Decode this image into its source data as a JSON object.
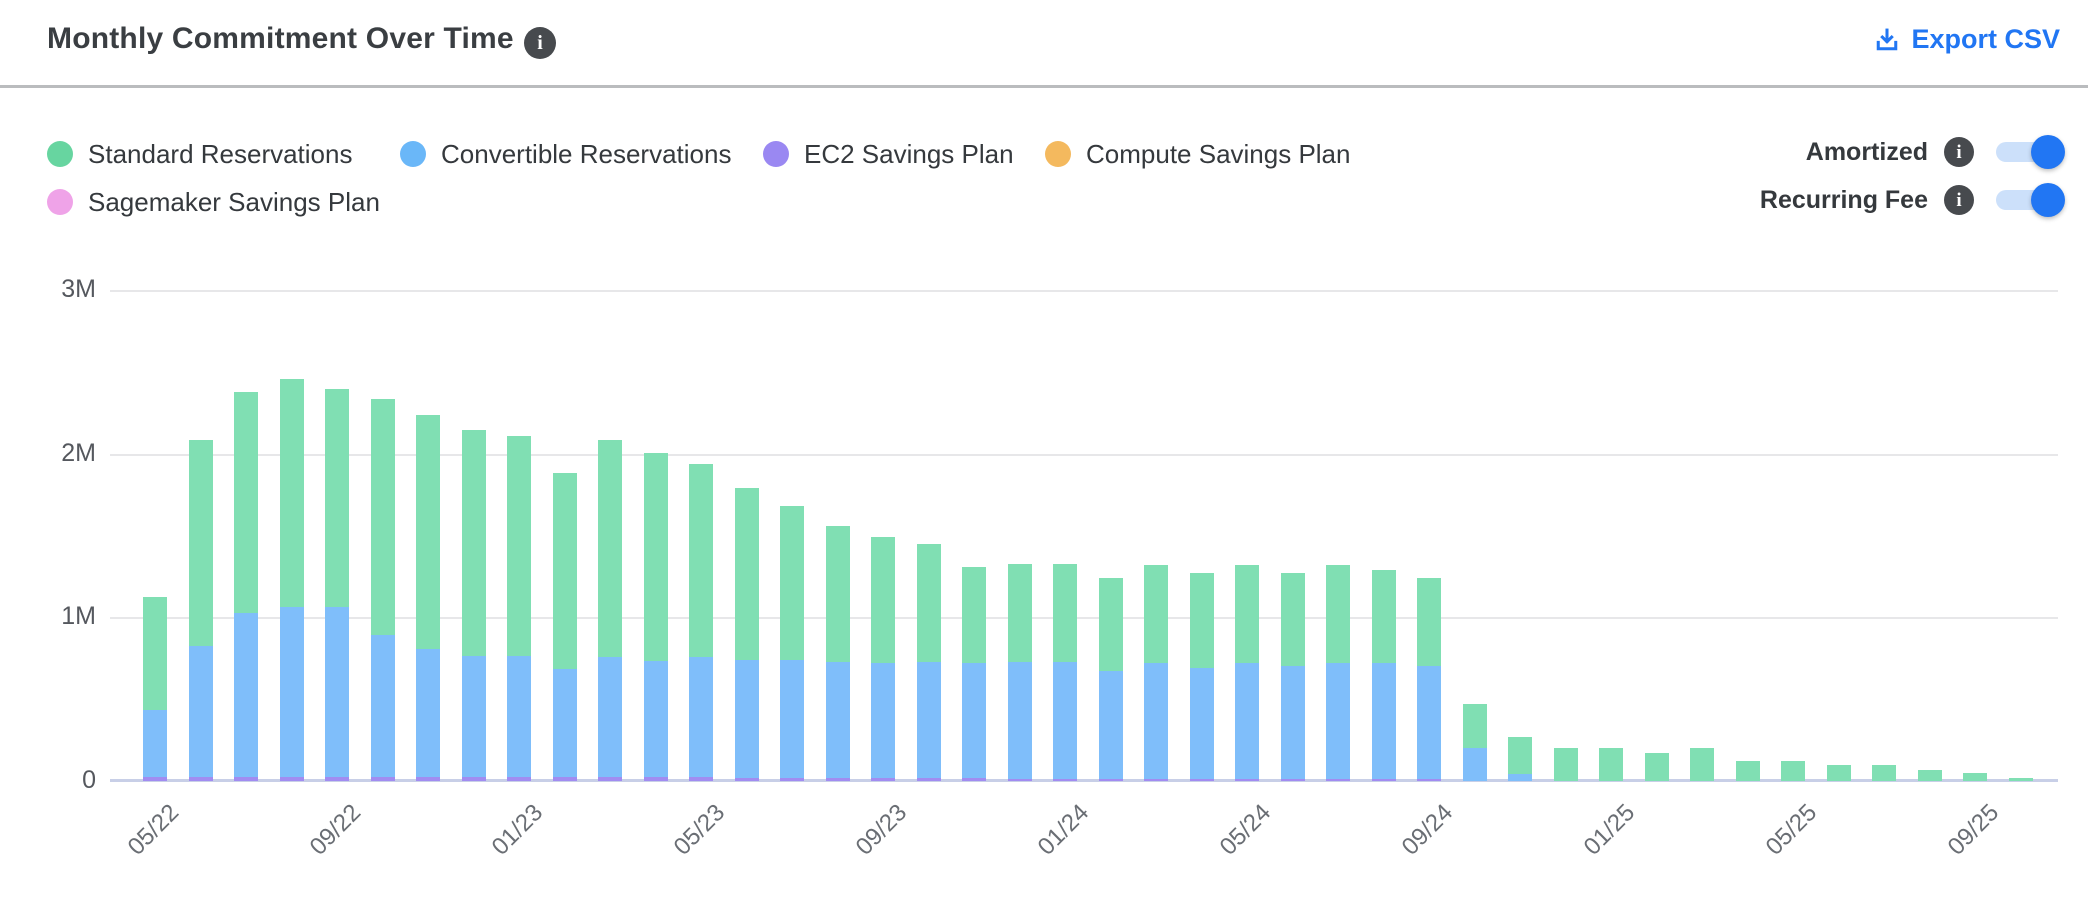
{
  "header": {
    "title": "Monthly Commitment Over Time",
    "export_label": "Export CSV"
  },
  "legend": {
    "items": [
      {
        "label": "Standard Reservations",
        "color": "#67d5a0"
      },
      {
        "label": "Convertible Reservations",
        "color": "#6ab7f8"
      },
      {
        "label": "EC2 Savings Plan",
        "color": "#9a88f2"
      },
      {
        "label": "Compute Savings Plan",
        "color": "#f4b95e"
      },
      {
        "label": "Sagemaker Savings Plan",
        "color": "#efa3e8"
      }
    ]
  },
  "toggles": [
    {
      "label": "Amortized",
      "state": "on"
    },
    {
      "label": "Recurring Fee",
      "state": "on"
    }
  ],
  "colors": {
    "accent_blue": "#2176f3",
    "toggle_track": "#cce0fa",
    "grid": "#e7e7e9",
    "baseline": "#c8cfe7",
    "axis_text": "#55585e"
  },
  "chart_data": {
    "type": "bar",
    "stacked": true,
    "title": "Monthly Commitment Over Time",
    "value_unit": "millions",
    "ylim": [
      0,
      3
    ],
    "y_ticks": [
      "0",
      "1M",
      "2M",
      "3M"
    ],
    "x_tick_every": 4,
    "x_tick_labels": [
      "05/22",
      "09/22",
      "01/23",
      "05/23",
      "09/23",
      "01/24",
      "05/24",
      "09/24",
      "01/25",
      "05/25",
      "09/25"
    ],
    "grid": true,
    "legend_position": "top-left",
    "categories": [
      "05/22",
      "06/22",
      "07/22",
      "08/22",
      "09/22",
      "10/22",
      "11/22",
      "12/22",
      "01/23",
      "02/23",
      "03/23",
      "04/23",
      "05/23",
      "06/23",
      "07/23",
      "08/23",
      "09/23",
      "10/23",
      "11/23",
      "12/23",
      "01/24",
      "02/24",
      "03/24",
      "04/24",
      "05/24",
      "06/24",
      "07/24",
      "08/24",
      "09/24",
      "10/24",
      "11/24",
      "12/24",
      "01/25",
      "02/25",
      "03/25",
      "04/25",
      "05/25",
      "06/25",
      "07/25",
      "08/25",
      "09/25",
      "10/25"
    ],
    "stack_order_bottom_to_top": [
      "EC2 Savings Plan",
      "Sagemaker Savings Plan",
      "Compute Savings Plan",
      "Convertible Reservations",
      "Standard Reservations"
    ],
    "series": [
      {
        "name": "Standard Reservations",
        "color": "#80dfb3",
        "values": [
          0.69,
          1.26,
          1.35,
          1.39,
          1.33,
          1.44,
          1.43,
          1.38,
          1.34,
          1.2,
          1.33,
          1.27,
          1.18,
          1.05,
          0.94,
          0.83,
          0.77,
          0.72,
          0.59,
          0.6,
          0.6,
          0.57,
          0.6,
          0.58,
          0.6,
          0.57,
          0.6,
          0.57,
          0.54,
          0.27,
          0.23,
          0.2,
          0.2,
          0.17,
          0.2,
          0.12,
          0.12,
          0.1,
          0.1,
          0.07,
          0.05,
          0.02
        ]
      },
      {
        "name": "Convertible Reservations",
        "color": "#7fbefa",
        "values": [
          0.41,
          0.8,
          1.0,
          1.04,
          1.04,
          0.87,
          0.78,
          0.74,
          0.74,
          0.66,
          0.73,
          0.71,
          0.73,
          0.72,
          0.72,
          0.71,
          0.7,
          0.71,
          0.7,
          0.71,
          0.71,
          0.66,
          0.71,
          0.68,
          0.71,
          0.69,
          0.71,
          0.71,
          0.69,
          0.2,
          0.04,
          0,
          0,
          0,
          0,
          0,
          0,
          0,
          0,
          0,
          0,
          0
        ]
      },
      {
        "name": "EC2 Savings Plan",
        "color": "#a18cf1",
        "values": [
          0.025,
          0.025,
          0.025,
          0.025,
          0.025,
          0.025,
          0.025,
          0.025,
          0.025,
          0.025,
          0.025,
          0.025,
          0.025,
          0.02,
          0.02,
          0.02,
          0.02,
          0.02,
          0.02,
          0.015,
          0.015,
          0.01,
          0.01,
          0.01,
          0.01,
          0.01,
          0.01,
          0.01,
          0.01,
          0,
          0,
          0,
          0,
          0,
          0,
          0,
          0,
          0,
          0,
          0,
          0,
          0
        ]
      },
      {
        "name": "Compute Savings Plan",
        "color": "#f4b95e",
        "values": [
          0,
          0,
          0,
          0,
          0,
          0,
          0,
          0,
          0,
          0,
          0,
          0,
          0,
          0,
          0,
          0,
          0,
          0,
          0,
          0,
          0,
          0,
          0,
          0,
          0,
          0,
          0,
          0,
          0,
          0,
          0,
          0,
          0,
          0,
          0,
          0,
          0,
          0,
          0,
          0,
          0,
          0
        ]
      },
      {
        "name": "Sagemaker Savings Plan",
        "color": "#efa3e8",
        "values": [
          0,
          0,
          0,
          0,
          0,
          0,
          0,
          0,
          0,
          0,
          0,
          0,
          0,
          0,
          0,
          0,
          0,
          0,
          0,
          0,
          0,
          0,
          0,
          0,
          0,
          0,
          0,
          0,
          0,
          0,
          0,
          0,
          0,
          0,
          0,
          0,
          0,
          0,
          0,
          0,
          0,
          0
        ]
      }
    ]
  }
}
